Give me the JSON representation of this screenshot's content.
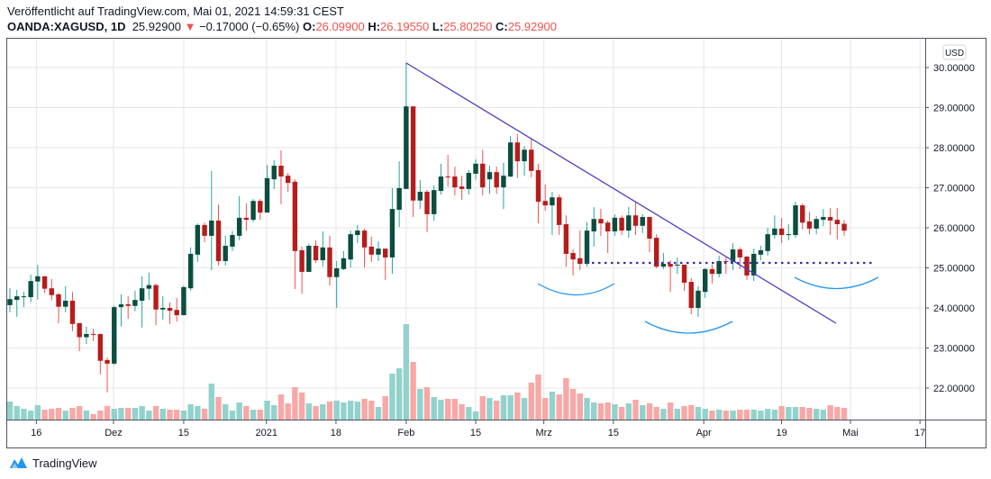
{
  "header": {
    "published": "Veröffentlicht auf TradingView.com, Mai 01, 2021 14:59:31 CEST",
    "symbol": "OANDA:XAGUSD, 1D",
    "last": "25.92900",
    "change": "−0.17000 (−0.65%)",
    "change_icon": "triangle-down-icon",
    "o_label": "O:",
    "o": "26.09900",
    "h_label": "H:",
    "h": "26.19550",
    "l_label": "L:",
    "l": "25.80250",
    "c_label": "C:",
    "c": "25.92900"
  },
  "footer": {
    "brand": "TradingView",
    "logo_icon": "tradingview-logo-icon"
  },
  "colors": {
    "up_body": "#0b4d3e",
    "up_wick": "#26a69a",
    "down_body": "#b71c1c",
    "down_wick": "#ef5350",
    "vol_up": "#92d2cc",
    "vol_down": "#f7a8a6",
    "trendline": "#4a3fbf",
    "arc": "#2196f3",
    "grid": "#e6e6e6"
  },
  "chart_data": {
    "type": "candlestick",
    "currency": "USD",
    "ylim": [
      21.25,
      30.7
    ],
    "y_ticks": [
      "30.00000",
      "29.00000",
      "28.00000",
      "27.00000",
      "26.00000",
      "25.00000",
      "24.00000",
      "23.00000",
      "22.00000"
    ],
    "y_tick_values": [
      30,
      29,
      28,
      27,
      26,
      25,
      24,
      23,
      22
    ],
    "x_ticks": [
      {
        "label": "16",
        "bar": 3.8
      },
      {
        "label": "Dez",
        "bar": 14.9
      },
      {
        "label": "15",
        "bar": 25
      },
      {
        "label": "2021",
        "bar": 36.9
      },
      {
        "label": "18",
        "bar": 46.9
      },
      {
        "label": "Feb",
        "bar": 57
      },
      {
        "label": "15",
        "bar": 67
      },
      {
        "label": "Mrz",
        "bar": 76.8
      },
      {
        "label": "15",
        "bar": 86.8
      },
      {
        "label": "Apr",
        "bar": 99.8
      },
      {
        "label": "19",
        "bar": 111
      },
      {
        "label": "Mai",
        "bar": 120.9
      },
      {
        "label": "17",
        "bar": 130.9
      }
    ],
    "grid": true,
    "ohlc": [
      [
        24.07,
        24.49,
        23.89,
        24.22
      ],
      [
        24.2,
        24.45,
        23.78,
        24.29
      ],
      [
        24.27,
        24.4,
        24.02,
        24.29
      ],
      [
        24.27,
        24.83,
        24.14,
        24.67
      ],
      [
        24.66,
        25.08,
        24.21,
        24.79
      ],
      [
        24.79,
        24.79,
        24.37,
        24.48
      ],
      [
        24.49,
        24.72,
        24.19,
        24.32
      ],
      [
        24.34,
        24.37,
        23.62,
        24.03
      ],
      [
        24.03,
        24.54,
        23.89,
        24.18
      ],
      [
        24.18,
        24.4,
        23.42,
        23.6
      ],
      [
        23.62,
        23.63,
        22.92,
        23.27
      ],
      [
        23.27,
        23.53,
        23.1,
        23.35
      ],
      [
        23.35,
        23.48,
        23.17,
        23.33
      ],
      [
        23.35,
        23.35,
        22.34,
        22.68
      ],
      [
        22.7,
        22.76,
        21.89,
        22.61
      ],
      [
        22.61,
        24.06,
        22.58,
        24.02
      ],
      [
        24.02,
        24.34,
        23.54,
        24.09
      ],
      [
        24.09,
        24.29,
        23.73,
        24.05
      ],
      [
        24.05,
        24.43,
        23.92,
        24.2
      ],
      [
        24.18,
        24.79,
        23.51,
        24.49
      ],
      [
        24.48,
        24.88,
        24.2,
        24.57
      ],
      [
        24.57,
        24.61,
        23.57,
        23.96
      ],
      [
        23.96,
        24.29,
        23.71,
        24.0
      ],
      [
        24.0,
        24.14,
        23.6,
        23.93
      ],
      [
        23.95,
        24.25,
        23.66,
        23.82
      ],
      [
        23.82,
        24.56,
        23.82,
        24.52
      ],
      [
        24.49,
        25.51,
        24.43,
        25.35
      ],
      [
        25.33,
        26.11,
        25.15,
        26.07
      ],
      [
        26.07,
        26.13,
        25.64,
        25.8
      ],
      [
        25.8,
        27.42,
        24.94,
        26.18
      ],
      [
        26.18,
        26.58,
        25.06,
        25.17
      ],
      [
        25.17,
        25.8,
        25.06,
        25.55
      ],
      [
        25.53,
        25.92,
        25.42,
        25.82
      ],
      [
        25.8,
        26.79,
        25.69,
        26.25
      ],
      [
        26.25,
        26.61,
        25.93,
        26.2
      ],
      [
        26.2,
        26.72,
        26.14,
        26.67
      ],
      [
        26.67,
        26.72,
        26.2,
        26.38
      ],
      [
        26.38,
        27.57,
        26.38,
        27.24
      ],
      [
        27.21,
        27.69,
        26.97,
        27.55
      ],
      [
        27.55,
        27.93,
        26.59,
        27.28
      ],
      [
        27.3,
        27.37,
        26.9,
        27.12
      ],
      [
        27.15,
        27.21,
        24.47,
        25.42
      ],
      [
        25.44,
        25.53,
        24.35,
        24.9
      ],
      [
        24.9,
        25.6,
        24.9,
        25.55
      ],
      [
        25.55,
        25.69,
        25.12,
        25.19
      ],
      [
        25.19,
        25.91,
        25.03,
        25.51
      ],
      [
        25.51,
        25.8,
        24.56,
        24.77
      ],
      [
        24.77,
        25.17,
        24.0,
        24.99
      ],
      [
        24.97,
        25.42,
        24.94,
        25.24
      ],
      [
        25.21,
        25.93,
        25.01,
        25.84
      ],
      [
        25.82,
        26.07,
        25.62,
        25.93
      ],
      [
        25.93,
        25.98,
        25.01,
        25.51
      ],
      [
        25.53,
        25.78,
        25.15,
        25.33
      ],
      [
        25.33,
        25.66,
        25.17,
        25.48
      ],
      [
        25.48,
        25.48,
        24.7,
        25.26
      ],
      [
        25.26,
        26.99,
        24.85,
        26.47
      ],
      [
        26.45,
        27.66,
        26.02,
        26.99
      ],
      [
        26.97,
        30.13,
        26.97,
        29.03
      ],
      [
        29.03,
        29.03,
        26.27,
        26.68
      ],
      [
        26.68,
        27.19,
        26.47,
        26.9
      ],
      [
        26.9,
        26.94,
        25.89,
        26.34
      ],
      [
        26.34,
        27.06,
        26.18,
        26.94
      ],
      [
        26.92,
        27.6,
        26.83,
        27.28
      ],
      [
        27.28,
        27.82,
        27.03,
        27.26
      ],
      [
        27.28,
        27.53,
        26.81,
        27.01
      ],
      [
        27.03,
        27.3,
        26.7,
        26.97
      ],
      [
        26.97,
        27.44,
        26.83,
        27.37
      ],
      [
        27.35,
        27.71,
        27.2,
        27.6
      ],
      [
        27.6,
        27.95,
        26.81,
        27.01
      ],
      [
        27.21,
        27.55,
        26.85,
        27.39
      ],
      [
        27.39,
        27.53,
        26.85,
        27.01
      ],
      [
        27.01,
        27.62,
        26.47,
        27.3
      ],
      [
        27.28,
        28.29,
        27.26,
        28.13
      ],
      [
        28.13,
        28.34,
        27.24,
        27.66
      ],
      [
        27.66,
        28.04,
        27.3,
        27.95
      ],
      [
        27.95,
        28.22,
        27.26,
        27.42
      ],
      [
        27.44,
        27.6,
        26.11,
        26.65
      ],
      [
        26.67,
        27.08,
        26.43,
        26.56
      ],
      [
        26.56,
        26.9,
        25.82,
        26.76
      ],
      [
        26.76,
        26.83,
        25.82,
        26.07
      ],
      [
        26.09,
        26.31,
        25.03,
        25.35
      ],
      [
        25.37,
        25.46,
        24.81,
        25.21
      ],
      [
        25.24,
        25.93,
        24.94,
        25.1
      ],
      [
        25.1,
        26.14,
        25.03,
        25.93
      ],
      [
        25.91,
        26.52,
        25.53,
        26.22
      ],
      [
        26.22,
        26.47,
        25.8,
        26.11
      ],
      [
        26.13,
        26.18,
        25.37,
        25.91
      ],
      [
        25.91,
        26.34,
        25.8,
        26.25
      ],
      [
        26.25,
        26.31,
        25.82,
        25.93
      ],
      [
        25.93,
        26.52,
        25.75,
        26.31
      ],
      [
        26.31,
        26.65,
        25.82,
        26.05
      ],
      [
        26.05,
        26.34,
        25.87,
        26.27
      ],
      [
        26.27,
        26.27,
        25.39,
        25.73
      ],
      [
        25.75,
        25.84,
        24.99,
        25.03
      ],
      [
        25.03,
        25.37,
        24.97,
        25.1
      ],
      [
        25.1,
        25.19,
        24.4,
        25.03
      ],
      [
        25.06,
        25.26,
        24.85,
        25.08
      ],
      [
        25.08,
        25.08,
        24.43,
        24.63
      ],
      [
        24.65,
        24.74,
        23.84,
        24.0
      ],
      [
        24.0,
        24.54,
        23.78,
        24.43
      ],
      [
        24.4,
        24.99,
        24.25,
        24.97
      ],
      [
        24.97,
        25.08,
        24.61,
        24.85
      ],
      [
        24.85,
        25.3,
        24.76,
        25.17
      ],
      [
        25.17,
        25.26,
        24.85,
        25.15
      ],
      [
        25.15,
        25.62,
        24.94,
        25.46
      ],
      [
        25.46,
        25.51,
        24.97,
        25.26
      ],
      [
        25.28,
        25.3,
        24.7,
        24.81
      ],
      [
        24.81,
        25.48,
        24.67,
        25.35
      ],
      [
        25.33,
        25.55,
        25.19,
        25.44
      ],
      [
        25.42,
        26.0,
        25.3,
        25.84
      ],
      [
        25.82,
        26.31,
        25.73,
        25.98
      ],
      [
        25.98,
        26.25,
        25.62,
        25.82
      ],
      [
        25.82,
        26.09,
        25.69,
        25.84
      ],
      [
        25.82,
        26.65,
        25.75,
        26.56
      ],
      [
        26.56,
        26.61,
        25.96,
        26.13
      ],
      [
        26.16,
        26.4,
        25.84,
        25.98
      ],
      [
        25.98,
        26.29,
        25.84,
        26.22
      ],
      [
        26.2,
        26.47,
        26.04,
        26.27
      ],
      [
        26.27,
        26.49,
        25.82,
        26.18
      ],
      [
        26.2,
        26.49,
        25.71,
        26.09
      ],
      [
        26.099,
        26.1955,
        25.8025,
        25.929
      ]
    ],
    "volume": [
      20,
      15,
      12,
      10,
      16,
      11,
      12,
      13,
      10,
      13,
      15,
      10,
      6,
      10,
      15,
      12,
      13,
      13,
      13,
      15,
      10,
      15,
      12,
      11,
      11,
      10,
      17,
      15,
      12,
      40,
      25,
      17,
      10,
      19,
      15,
      11,
      11,
      21,
      16,
      28,
      18,
      36,
      30,
      18,
      15,
      17,
      20,
      21,
      19,
      21,
      20,
      23,
      21,
      14,
      26,
      51,
      57,
      106,
      64,
      34,
      36,
      25,
      22,
      23,
      23,
      17,
      14,
      9,
      26,
      24,
      21,
      27,
      27,
      30,
      24,
      41,
      50,
      24,
      31,
      28,
      46,
      34,
      29,
      24,
      19,
      18,
      19,
      17,
      14,
      18,
      22,
      16,
      18,
      14,
      12,
      19,
      12,
      15,
      16,
      14,
      12,
      10,
      11,
      10,
      10,
      11,
      11,
      11,
      10,
      12,
      11,
      15,
      14,
      14,
      14,
      13,
      12,
      11,
      16,
      14,
      13
    ]
  }
}
